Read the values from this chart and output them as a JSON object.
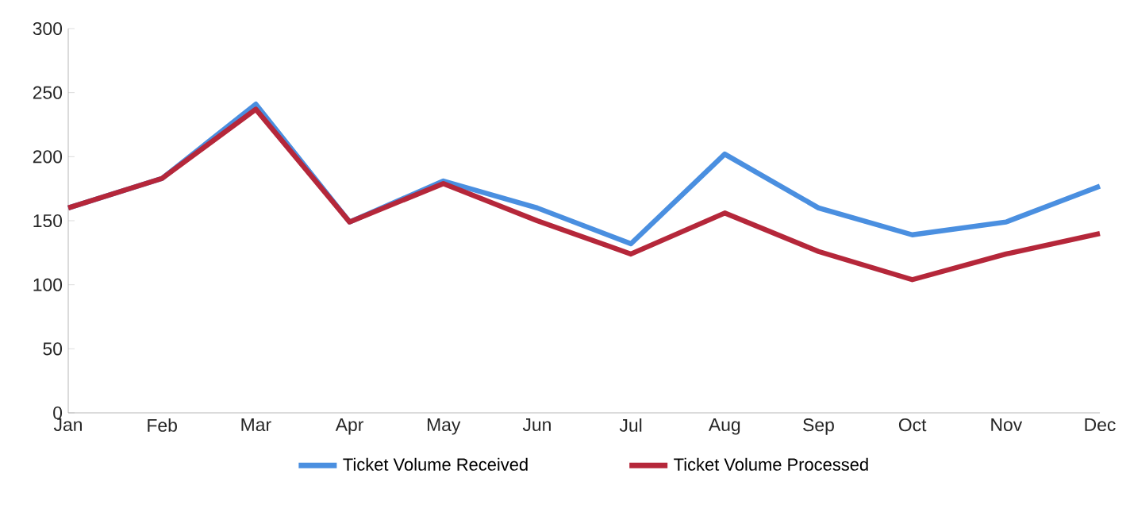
{
  "chart_data": {
    "type": "line",
    "categories": [
      "Jan",
      "Feb",
      "Mar",
      "Apr",
      "May",
      "Jun",
      "Jul",
      "Aug",
      "Sep",
      "Oct",
      "Nov",
      "Dec"
    ],
    "series": [
      {
        "name": "Ticket Volume Received",
        "color": "#4a8fe0",
        "values": [
          160,
          183,
          241,
          149,
          181,
          160,
          132,
          202,
          160,
          139,
          149,
          177
        ]
      },
      {
        "name": "Ticket Volume Processed",
        "color": "#b5273a",
        "values": [
          160,
          183,
          237,
          149,
          179,
          150,
          124,
          156,
          126,
          104,
          124,
          140
        ]
      }
    ],
    "ylim": [
      0,
      300
    ],
    "yticks": [
      0,
      50,
      100,
      150,
      200,
      250,
      300
    ],
    "grid": false,
    "legend": "bottom",
    "marker": "none",
    "line_style": "solid"
  }
}
